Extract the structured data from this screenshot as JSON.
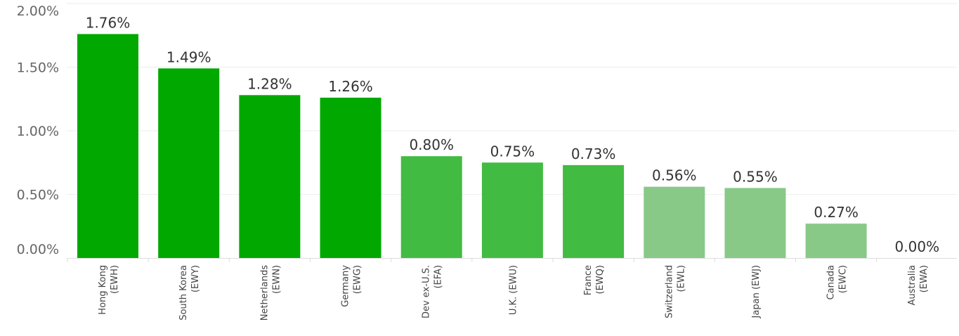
{
  "chart_data": {
    "type": "bar",
    "title": "",
    "xlabel": "",
    "ylabel": "",
    "ylim": [
      0,
      2
    ],
    "yticks": [
      {
        "value": 0,
        "label": "0.00%"
      },
      {
        "value": 0.5,
        "label": "0.50%"
      },
      {
        "value": 1.0,
        "label": "1.00%"
      },
      {
        "value": 1.5,
        "label": "1.50%"
      },
      {
        "value": 2.0,
        "label": "2.00%"
      }
    ],
    "grid": true,
    "legend": "none",
    "categories": [
      [
        "Hong Kong",
        "(EWH)"
      ],
      [
        "South Korea",
        "(EWY)"
      ],
      [
        "Netherlands",
        "(EWN)"
      ],
      [
        "Germany",
        "(EWG)"
      ],
      [
        "Dev ex-U.S.",
        "(EFA)"
      ],
      [
        "U.K. (EWU)"
      ],
      [
        "France",
        "(EWQ)"
      ],
      [
        "Switzerland",
        "(EWL)"
      ],
      [
        "Japan (EWJ)"
      ],
      [
        "Canada",
        "(EWC)"
      ],
      [
        "Australia",
        "(EWA)"
      ]
    ],
    "values": [
      1.76,
      1.49,
      1.28,
      1.26,
      0.8,
      0.75,
      0.73,
      0.56,
      0.55,
      0.27,
      0.0
    ],
    "value_labels": [
      "1.76%",
      "1.49%",
      "1.28%",
      "1.26%",
      "0.80%",
      "0.75%",
      "0.73%",
      "0.56%",
      "0.55%",
      "0.27%",
      "0.00%"
    ],
    "bar_colors": [
      "#00a800",
      "#00a800",
      "#00a800",
      "#00a800",
      "#42bb42",
      "#42bb42",
      "#42bb42",
      "#88c988",
      "#88c988",
      "#88c988",
      "#88c988"
    ]
  }
}
